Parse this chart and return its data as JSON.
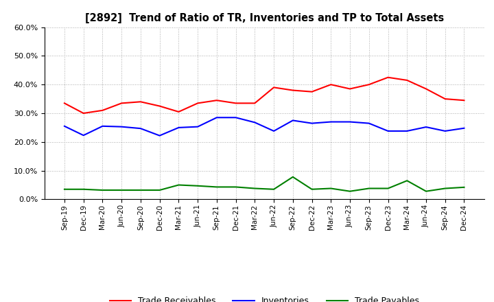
{
  "title": "[2892]  Trend of Ratio of TR, Inventories and TP to Total Assets",
  "x_labels": [
    "Sep-19",
    "Dec-19",
    "Mar-20",
    "Jun-20",
    "Sep-20",
    "Dec-20",
    "Mar-21",
    "Jun-21",
    "Sep-21",
    "Dec-21",
    "Mar-22",
    "Jun-22",
    "Sep-22",
    "Dec-22",
    "Mar-23",
    "Jun-23",
    "Sep-23",
    "Dec-23",
    "Mar-24",
    "Jun-24",
    "Sep-24",
    "Dec-24"
  ],
  "trade_receivables": [
    0.335,
    0.3,
    0.31,
    0.335,
    0.34,
    0.325,
    0.305,
    0.335,
    0.345,
    0.335,
    0.335,
    0.39,
    0.38,
    0.375,
    0.4,
    0.385,
    0.4,
    0.425,
    0.415,
    0.385,
    0.35,
    0.345
  ],
  "inventories": [
    0.255,
    0.223,
    0.255,
    0.253,
    0.247,
    0.222,
    0.25,
    0.253,
    0.285,
    0.285,
    0.268,
    0.238,
    0.275,
    0.265,
    0.27,
    0.27,
    0.265,
    0.238,
    0.238,
    0.252,
    0.238,
    0.248
  ],
  "trade_payables": [
    0.035,
    0.035,
    0.032,
    0.032,
    0.032,
    0.032,
    0.05,
    0.047,
    0.043,
    0.043,
    0.038,
    0.035,
    0.078,
    0.035,
    0.038,
    0.028,
    0.038,
    0.038,
    0.065,
    0.028,
    0.038,
    0.042
  ],
  "ylim": [
    0.0,
    0.6
  ],
  "yticks": [
    0.0,
    0.1,
    0.2,
    0.3,
    0.4,
    0.5,
    0.6
  ],
  "line_colors": {
    "trade_receivables": "#ff0000",
    "inventories": "#0000ff",
    "trade_payables": "#008000"
  },
  "legend_labels": [
    "Trade Receivables",
    "Inventories",
    "Trade Payables"
  ],
  "background_color": "#ffffff",
  "grid_color": "#aaaaaa"
}
